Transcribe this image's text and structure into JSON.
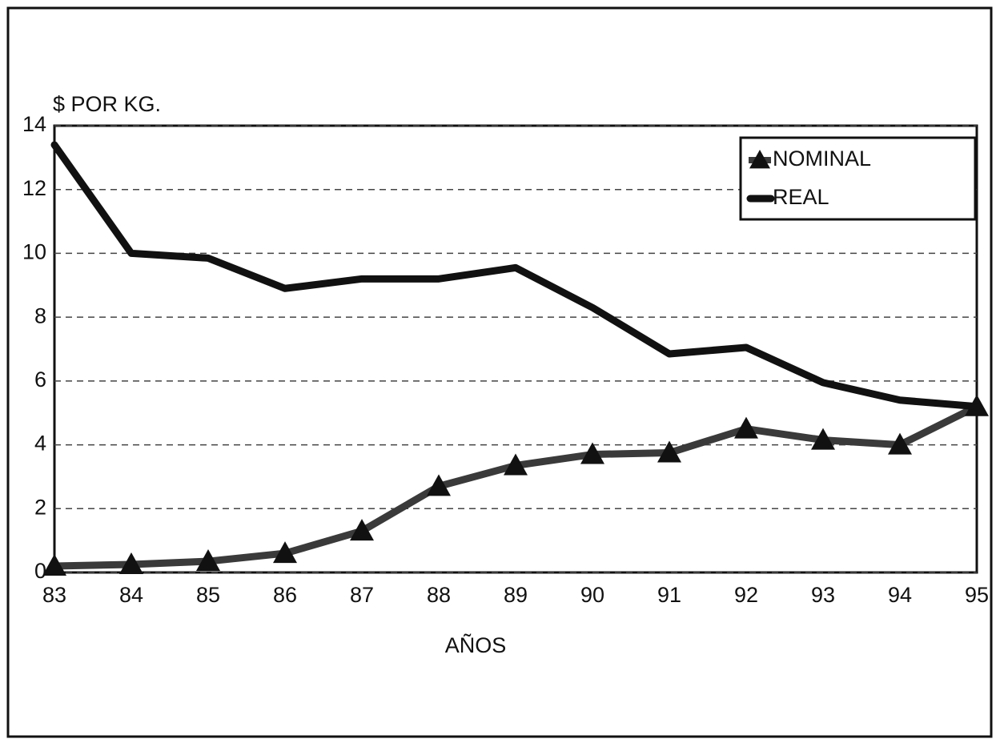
{
  "chart_data": {
    "type": "line",
    "ylabel": "$ POR KG.",
    "xlabel": "AÑOS",
    "categories": [
      "83",
      "84",
      "85",
      "86",
      "87",
      "88",
      "89",
      "90",
      "91",
      "92",
      "93",
      "94",
      "95"
    ],
    "series": [
      {
        "name": "NOMINAL",
        "color": "#3a3a3a",
        "marker": "triangle",
        "values": [
          0.2,
          0.25,
          0.35,
          0.6,
          1.3,
          2.7,
          3.35,
          3.7,
          3.75,
          4.5,
          4.15,
          4.0,
          5.2
        ]
      },
      {
        "name": "REAL",
        "color": "#111111",
        "marker": "none",
        "values": [
          13.4,
          10.0,
          9.85,
          8.9,
          9.2,
          9.2,
          9.55,
          8.3,
          6.85,
          7.05,
          5.95,
          5.4,
          5.2
        ]
      }
    ],
    "ylim": [
      0,
      14
    ],
    "yticks": [
      0,
      2,
      4,
      6,
      8,
      10,
      12,
      14
    ],
    "grid": true,
    "legend": "upper right"
  }
}
